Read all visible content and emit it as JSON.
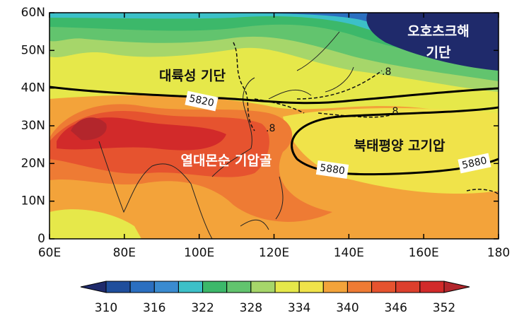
{
  "axes": {
    "xlim": [
      60,
      180
    ],
    "ylim": [
      0,
      60
    ],
    "xticks": [
      {
        "value": 60,
        "label": "60E"
      },
      {
        "value": 80,
        "label": "80E"
      },
      {
        "value": 100,
        "label": "100E"
      },
      {
        "value": 120,
        "label": "120E"
      },
      {
        "value": 140,
        "label": "140E"
      },
      {
        "value": 160,
        "label": "160E"
      },
      180
    ],
    "yticks": [
      0,
      {
        "value": 10,
        "label": "10N"
      },
      {
        "value": 20,
        "label": "20N"
      },
      {
        "value": 30,
        "label": "30N"
      },
      {
        "value": 40,
        "label": "40N"
      },
      {
        "value": 50,
        "label": "50N"
      },
      {
        "value": 60,
        "label": "60N"
      }
    ]
  },
  "regions": [
    "오호츠크해",
    "기단",
    "대륙성 기단",
    "열대몬순 기압골",
    "북태평양 고기압"
  ],
  "contour_labels": [
    "5820",
    "5880",
    "5880",
    ".8",
    ".8",
    ".8"
  ],
  "colorbar": {
    "lim": [
      310,
      352
    ],
    "ticks": [
      310,
      316,
      322,
      328,
      334,
      340,
      346,
      352
    ],
    "colors": [
      "#1f2a6b",
      "#1f4e9c",
      "#2b6fc0",
      "#3a8bd0",
      "#3cc0c8",
      "#3cb86a",
      "#62c46e",
      "#a6d66a",
      "#e6e84a",
      "#f0e34a",
      "#f3a33a",
      "#ee7b34",
      "#e6532f",
      "#dc3f2d",
      "#d22a2a",
      "#b3262c"
    ]
  }
}
